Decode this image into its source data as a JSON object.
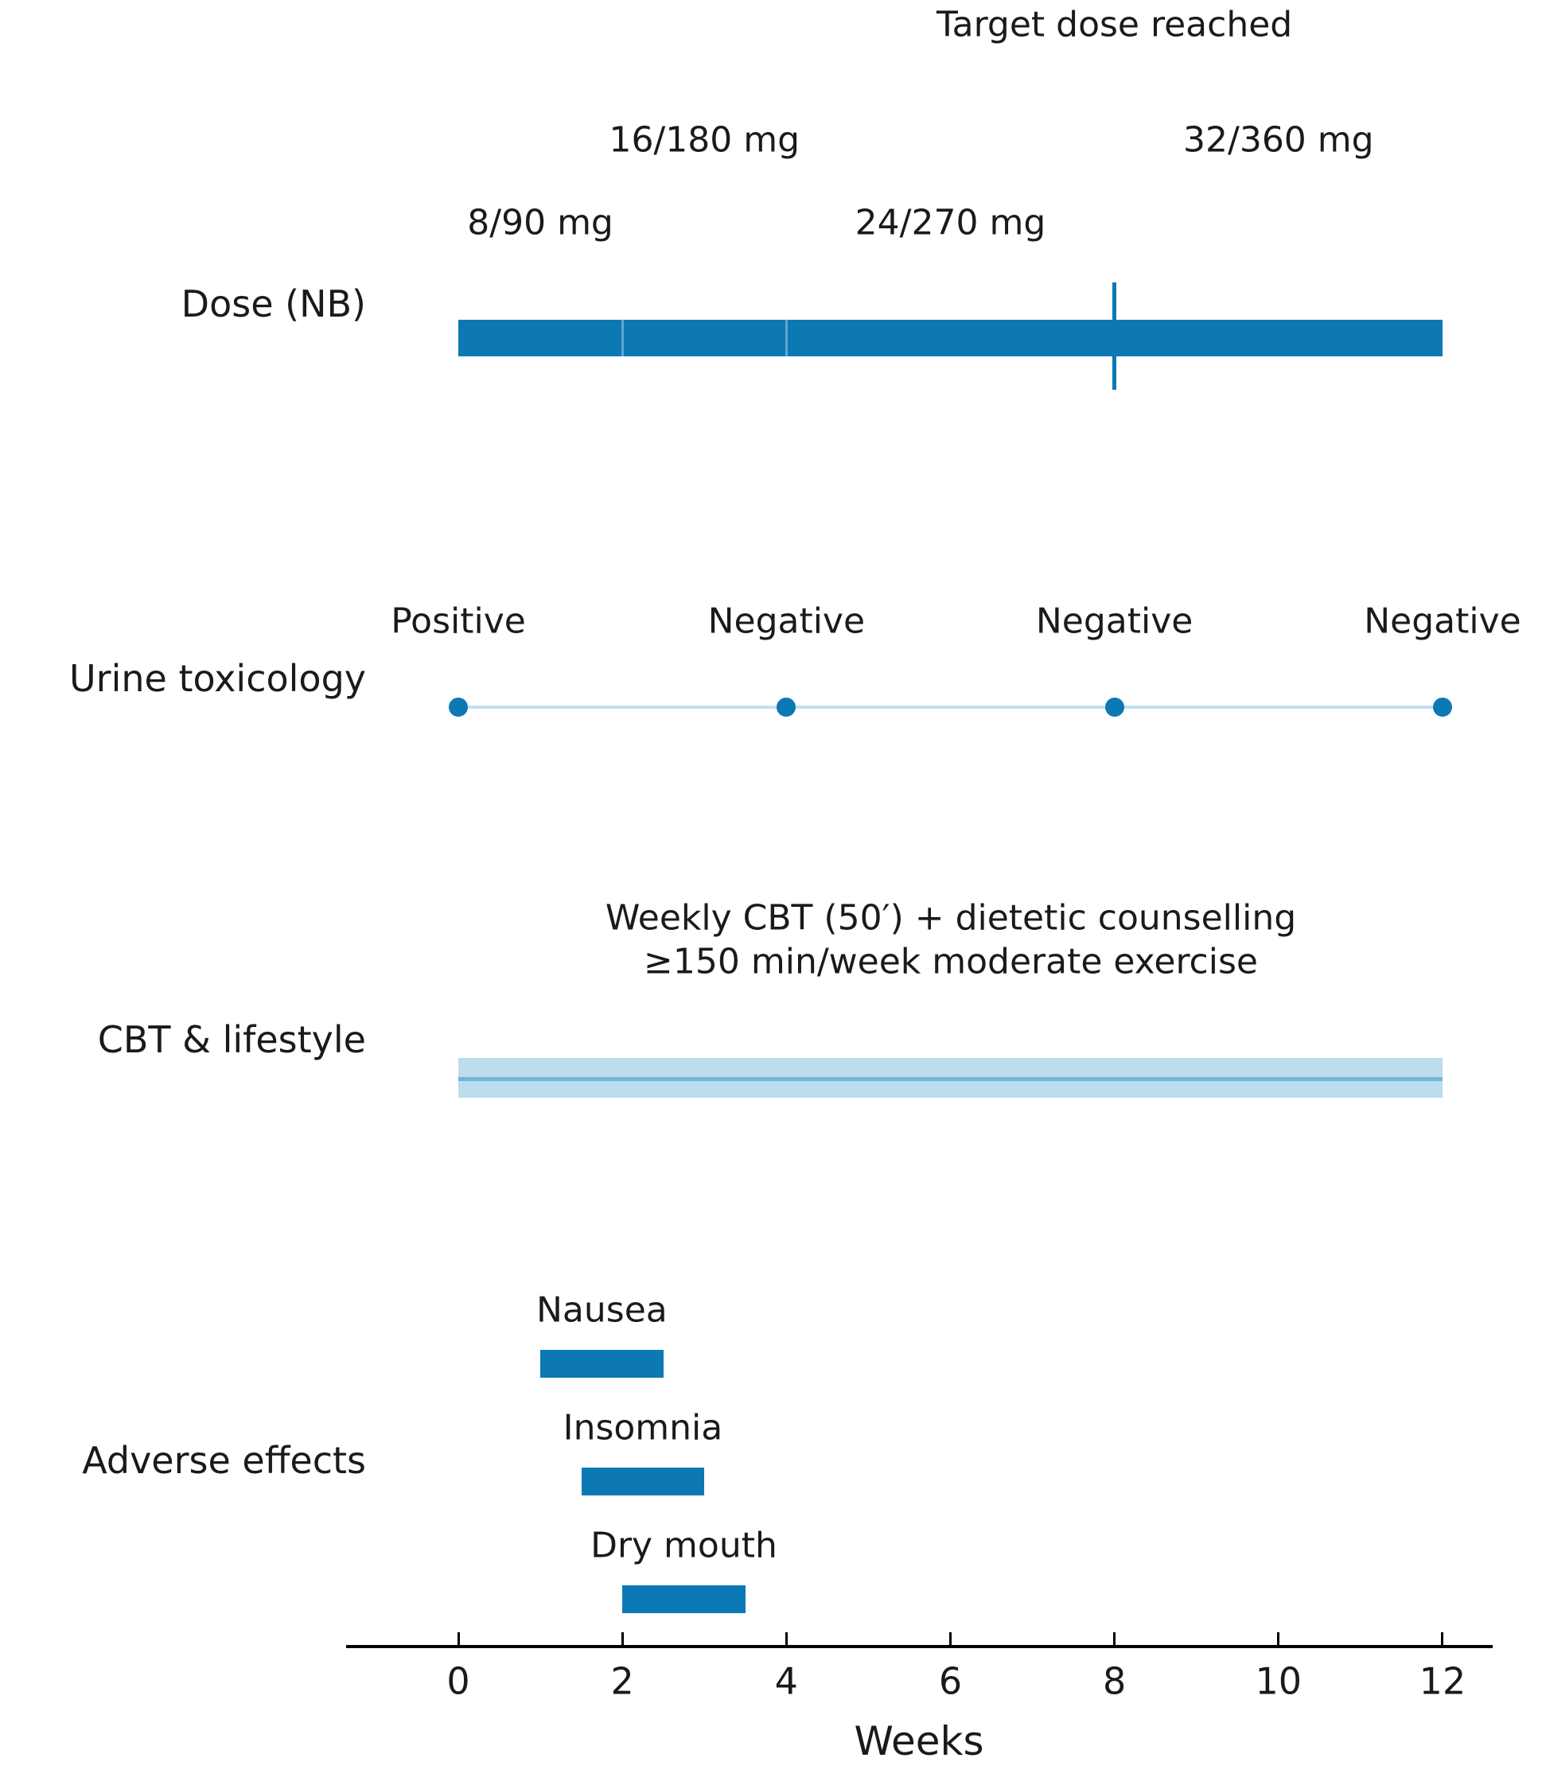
{
  "figure": {
    "background": "#ffffff",
    "text_color": "#1a1a1a",
    "axis_color": "#000000",
    "accent_blue": "#0c79b5",
    "band_light_blue": "#bddcee",
    "band_midline_blue": "#74b3da",
    "connector_light_blue": "#c3e0f2",
    "segment_divider": "rgba(255,255,255,0.35)"
  },
  "chart_data": {
    "type": "timeline",
    "xlabel": "Weeks",
    "x_range": [
      0,
      12
    ],
    "x_ticks": [
      0,
      2,
      4,
      6,
      8,
      10,
      12
    ],
    "grid": "off",
    "rows": [
      {
        "label": "Dose (NB)"
      },
      {
        "label": "Urine toxicology"
      },
      {
        "label": "CBT & lifestyle"
      },
      {
        "label": "Adverse effects"
      }
    ],
    "dose": {
      "bar": {
        "start_week": 0,
        "end_week": 12
      },
      "segment_boundaries_weeks": [
        2,
        4,
        8
      ],
      "steps": [
        {
          "label": "8/90 mg",
          "week": 1,
          "tier": "low"
        },
        {
          "label": "16/180 mg",
          "week": 3,
          "tier": "high"
        },
        {
          "label": "24/270 mg",
          "week": 6,
          "tier": "low"
        },
        {
          "label": "32/360 mg",
          "week": 10,
          "tier": "high"
        }
      ],
      "target_marker": {
        "week": 8,
        "label": "Target dose reached"
      }
    },
    "urine_toxicology": {
      "connector": {
        "start_week": 0,
        "end_week": 12
      },
      "tests": [
        {
          "week": 0,
          "result": "Positive"
        },
        {
          "week": 4,
          "result": "Negative"
        },
        {
          "week": 8,
          "result": "Negative"
        },
        {
          "week": 12,
          "result": "Negative"
        }
      ]
    },
    "cbt_lifestyle": {
      "band": {
        "start_week": 0,
        "end_week": 12
      },
      "annotation_lines": [
        "Weekly CBT (50′) + dietetic counselling",
        "≥150 min/week moderate exercise"
      ]
    },
    "adverse_effects": [
      {
        "label": "Nausea",
        "start_week": 1,
        "end_week": 2.5
      },
      {
        "label": "Insomnia",
        "start_week": 1.5,
        "end_week": 3
      },
      {
        "label": "Dry mouth",
        "start_week": 2,
        "end_week": 3.5
      }
    ]
  }
}
